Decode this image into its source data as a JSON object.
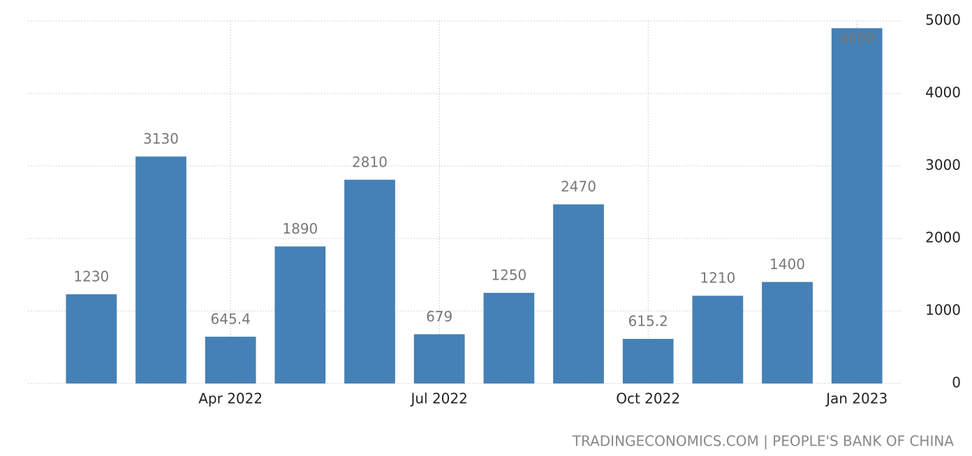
{
  "chart_data": {
    "type": "bar",
    "source": "TRADINGECONOMICS.COM | PEOPLE'S BANK OF CHINA",
    "categories": [
      null,
      null,
      "Apr 2022",
      null,
      null,
      "Jul 2022",
      null,
      null,
      "Oct 2022",
      null,
      null,
      "Jan 2023"
    ],
    "values": [
      1230,
      3130,
      645.4,
      1890,
      2810,
      679,
      1250,
      2470,
      615.2,
      1210,
      1400,
      4900
    ],
    "color": "#4581b6",
    "ylim": [
      0,
      5000
    ],
    "yticks": [
      0,
      1000,
      2000,
      3000,
      4000,
      5000
    ],
    "grid": true
  }
}
